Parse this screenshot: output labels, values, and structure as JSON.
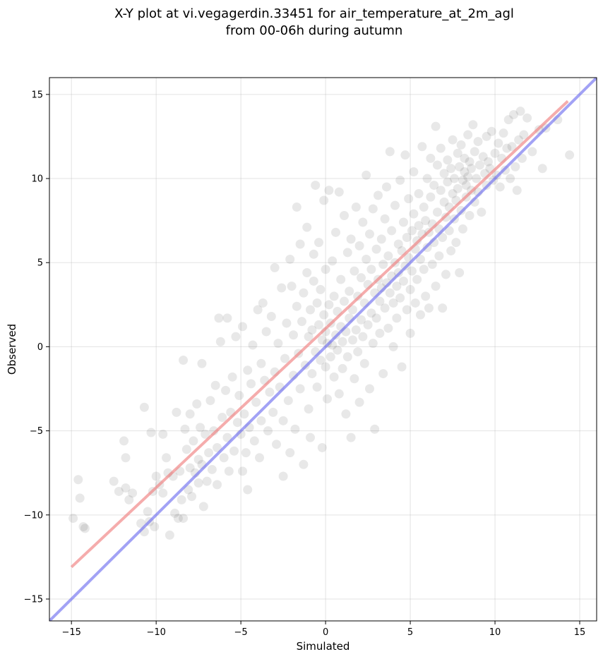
{
  "chart_data": {
    "type": "scatter",
    "title_line1": "X-Y plot at vi.vegagerdin.33451 for air_temperature_at_2m_agl",
    "title_line2": "from 00-06h during autumn",
    "xlabel": "Simulated",
    "ylabel": "Observed",
    "xlim": [
      -16.3,
      16.0
    ],
    "ylim": [
      -16.3,
      16.0
    ],
    "xticks": [
      -15,
      -10,
      -5,
      0,
      5,
      10,
      15
    ],
    "yticks": [
      -15,
      -10,
      -5,
      0,
      5,
      10,
      15
    ],
    "xtick_labels": [
      "−15",
      "−10",
      "−5",
      "0",
      "5",
      "10",
      "15"
    ],
    "ytick_labels": [
      "−15",
      "−10",
      "−5",
      "0",
      "5",
      "10",
      "15"
    ],
    "grid": true,
    "point_color": "#000000",
    "point_opacity": 0.09,
    "lines": [
      {
        "color": "#f08080",
        "x": [
          -15.0,
          14.3
        ],
        "y": [
          -13.1,
          14.6
        ]
      },
      {
        "color": "#7070f0",
        "x": [
          -16.3,
          16.0
        ],
        "y": [
          -16.3,
          16.0
        ]
      }
    ],
    "points": [
      [
        -14.9,
        -10.2
      ],
      [
        -14.6,
        -7.9
      ],
      [
        -14.5,
        -9.0
      ],
      [
        -14.3,
        -10.7
      ],
      [
        -14.2,
        -10.8
      ],
      [
        -12.5,
        -8.0
      ],
      [
        -12.2,
        -8.6
      ],
      [
        -11.9,
        -5.6
      ],
      [
        -11.8,
        -6.6
      ],
      [
        -11.8,
        -8.4
      ],
      [
        -11.6,
        -9.1
      ],
      [
        -11.4,
        -8.7
      ],
      [
        -10.9,
        -10.5
      ],
      [
        -10.7,
        -3.6
      ],
      [
        -10.7,
        -11.0
      ],
      [
        -10.5,
        -9.8
      ],
      [
        -10.4,
        -10.4
      ],
      [
        -10.3,
        -5.1
      ],
      [
        -10.2,
        -8.6
      ],
      [
        -10.1,
        -10.7
      ],
      [
        -10.0,
        -7.7
      ],
      [
        -9.8,
        -8.2
      ],
      [
        -9.6,
        -5.2
      ],
      [
        -9.6,
        -8.7
      ],
      [
        -9.4,
        -6.6
      ],
      [
        -9.3,
        -7.5
      ],
      [
        -9.2,
        -11.2
      ],
      [
        -9.0,
        -7.7
      ],
      [
        -8.9,
        -9.9
      ],
      [
        -8.8,
        -3.9
      ],
      [
        -8.7,
        -10.2
      ],
      [
        -8.6,
        -7.4
      ],
      [
        -8.5,
        -9.1
      ],
      [
        -8.4,
        -10.2
      ],
      [
        -8.4,
        -0.8
      ],
      [
        -8.3,
        -4.9
      ],
      [
        -8.2,
        -6.1
      ],
      [
        -8.1,
        -8.5
      ],
      [
        -8.0,
        -4.0
      ],
      [
        -8.0,
        -7.2
      ],
      [
        -7.9,
        -8.9
      ],
      [
        -7.8,
        -5.6
      ],
      [
        -7.7,
        -7.5
      ],
      [
        -7.6,
        -3.4
      ],
      [
        -7.5,
        -6.7
      ],
      [
        -7.5,
        -8.1
      ],
      [
        -7.4,
        -4.8
      ],
      [
        -7.3,
        -1.0
      ],
      [
        -7.3,
        -7.0
      ],
      [
        -7.2,
        -9.5
      ],
      [
        -7.1,
        -5.2
      ],
      [
        -7.0,
        -8.0
      ],
      [
        -6.9,
        -6.3
      ],
      [
        -6.8,
        -3.2
      ],
      [
        -6.7,
        -7.3
      ],
      [
        -6.6,
        -5.0
      ],
      [
        -6.5,
        -2.3
      ],
      [
        -6.4,
        -6.0
      ],
      [
        -6.4,
        -8.2
      ],
      [
        -6.3,
        1.7
      ],
      [
        -6.2,
        0.3
      ],
      [
        -6.1,
        -4.2
      ],
      [
        -6.0,
        -6.6
      ],
      [
        -5.9,
        -2.6
      ],
      [
        -5.8,
        1.7
      ],
      [
        -5.8,
        -5.4
      ],
      [
        -5.7,
        -7.4
      ],
      [
        -5.6,
        -3.9
      ],
      [
        -5.5,
        -1.8
      ],
      [
        -5.4,
        -6.2
      ],
      [
        -5.3,
        0.6
      ],
      [
        -5.2,
        -4.5
      ],
      [
        -5.1,
        -2.9
      ],
      [
        -5.0,
        -5.2
      ],
      [
        -4.9,
        1.2
      ],
      [
        -4.9,
        -7.4
      ],
      [
        -4.8,
        -4.0
      ],
      [
        -4.7,
        -6.3
      ],
      [
        -4.6,
        -1.4
      ],
      [
        -4.6,
        -8.5
      ],
      [
        -4.5,
        -4.8
      ],
      [
        -4.4,
        -2.2
      ],
      [
        -4.3,
        0.1
      ],
      [
        -4.2,
        -5.6
      ],
      [
        -4.1,
        -3.3
      ],
      [
        -4.0,
        2.2
      ],
      [
        -3.9,
        -6.6
      ],
      [
        -3.8,
        -1.0
      ],
      [
        -3.8,
        -4.4
      ],
      [
        -3.7,
        2.6
      ],
      [
        -3.6,
        -2.0
      ],
      [
        -3.5,
        0.9
      ],
      [
        -3.4,
        -5.0
      ],
      [
        -3.3,
        -2.7
      ],
      [
        -3.2,
        1.8
      ],
      [
        -3.1,
        -3.9
      ],
      [
        -3.0,
        -1.5
      ],
      [
        -3.0,
        4.7
      ],
      [
        -2.9,
        -5.8
      ],
      [
        -2.8,
        0.2
      ],
      [
        -2.7,
        -2.4
      ],
      [
        -2.6,
        3.5
      ],
      [
        -2.5,
        -7.7
      ],
      [
        -2.5,
        -4.4
      ],
      [
        -2.4,
        -0.7
      ],
      [
        -2.3,
        1.4
      ],
      [
        -2.2,
        -3.2
      ],
      [
        -2.1,
        5.2
      ],
      [
        -2.1,
        -6.3
      ],
      [
        -2.0,
        3.6
      ],
      [
        -1.9,
        -1.7
      ],
      [
        -1.9,
        0.7
      ],
      [
        -1.8,
        -4.9
      ],
      [
        -1.7,
        8.3
      ],
      [
        -1.7,
        2.4
      ],
      [
        -1.6,
        -0.4
      ],
      [
        -1.5,
        6.1
      ],
      [
        -1.5,
        -2.5
      ],
      [
        -1.4,
        1.5
      ],
      [
        -1.3,
        -7.0
      ],
      [
        -1.3,
        3.2
      ],
      [
        -1.2,
        -1.1
      ],
      [
        -1.1,
        7.1
      ],
      [
        -1.1,
        4.4
      ],
      [
        -1.0,
        -3.7
      ],
      [
        -1.0,
        0.6
      ],
      [
        -0.9,
        2.2
      ],
      [
        -0.9,
        -5.4
      ],
      [
        -0.8,
        1.0
      ],
      [
        -0.8,
        -1.6
      ],
      [
        -0.7,
        3.9
      ],
      [
        -0.7,
        5.5
      ],
      [
        -0.6,
        -0.3
      ],
      [
        -0.6,
        9.6
      ],
      [
        -0.5,
        2.6
      ],
      [
        -0.5,
        -2.4
      ],
      [
        -0.4,
        1.3
      ],
      [
        -0.4,
        6.2
      ],
      [
        -0.3,
        -0.8
      ],
      [
        -0.3,
        3.4
      ],
      [
        -0.2,
        0.4
      ],
      [
        -0.2,
        -6.0
      ],
      [
        -0.1,
        8.7
      ],
      [
        -0.1,
        1.9
      ],
      [
        0.0,
        -1.2
      ],
      [
        0.0,
        0.9
      ],
      [
        0.0,
        4.6
      ],
      [
        0.1,
        0.2
      ],
      [
        0.1,
        -3.1
      ],
      [
        0.2,
        2.5
      ],
      [
        0.2,
        9.3
      ],
      [
        0.3,
        -0.6
      ],
      [
        0.3,
        1.4
      ],
      [
        0.4,
        5.1
      ],
      [
        0.4,
        0.1
      ],
      [
        0.5,
        -1.8
      ],
      [
        0.5,
        3.0
      ],
      [
        0.6,
        6.8
      ],
      [
        0.6,
        0.7
      ],
      [
        0.7,
        -0.2
      ],
      [
        0.7,
        2.1
      ],
      [
        0.8,
        9.2
      ],
      [
        0.8,
        -2.8
      ],
      [
        0.9,
        1.2
      ],
      [
        0.9,
        4.0
      ],
      [
        1.0,
        0.3
      ],
      [
        1.0,
        -1.3
      ],
      [
        1.1,
        7.8
      ],
      [
        1.1,
        2.7
      ],
      [
        1.2,
        -4.0
      ],
      [
        1.2,
        0.9
      ],
      [
        1.3,
        5.6
      ],
      [
        1.3,
        -0.6
      ],
      [
        1.4,
        3.3
      ],
      [
        1.4,
        1.7
      ],
      [
        1.5,
        -5.4
      ],
      [
        1.5,
        6.4
      ],
      [
        1.6,
        0.4
      ],
      [
        1.6,
        2.2
      ],
      [
        1.7,
        -1.9
      ],
      [
        1.7,
        4.5
      ],
      [
        1.8,
        8.3
      ],
      [
        1.8,
        1.0
      ],
      [
        1.9,
        -0.3
      ],
      [
        1.9,
        3.0
      ],
      [
        2.0,
        6.0
      ],
      [
        2.0,
        -3.3
      ],
      [
        2.1,
        1.6
      ],
      [
        2.1,
        4.1
      ],
      [
        2.2,
        0.6
      ],
      [
        2.2,
        7.4
      ],
      [
        2.3,
        2.6
      ],
      [
        2.3,
        -1.0
      ],
      [
        2.4,
        5.2
      ],
      [
        2.4,
        10.2
      ],
      [
        2.5,
        1.3
      ],
      [
        2.5,
        3.7
      ],
      [
        2.6,
        -2.5
      ],
      [
        2.6,
        6.7
      ],
      [
        2.7,
        2.0
      ],
      [
        2.7,
        4.6
      ],
      [
        2.8,
        0.2
      ],
      [
        2.8,
        8.2
      ],
      [
        2.9,
        3.2
      ],
      [
        2.9,
        -4.9
      ],
      [
        3.0,
        5.8
      ],
      [
        3.0,
        1.7
      ],
      [
        3.1,
        4.0
      ],
      [
        3.1,
        9.0
      ],
      [
        3.2,
        2.7
      ],
      [
        3.2,
        0.8
      ],
      [
        3.3,
        6.4
      ],
      [
        3.3,
        3.5
      ],
      [
        3.4,
        -1.6
      ],
      [
        3.4,
        4.9
      ],
      [
        3.5,
        7.6
      ],
      [
        3.5,
        2.3
      ],
      [
        3.6,
        3.8
      ],
      [
        3.6,
        9.5
      ],
      [
        3.7,
        1.1
      ],
      [
        3.7,
        5.4
      ],
      [
        3.8,
        3.2
      ],
      [
        3.8,
        11.6
      ],
      [
        3.9,
        4.2
      ],
      [
        3.9,
        6.9
      ],
      [
        4.0,
        2.6
      ],
      [
        4.0,
        0.0
      ],
      [
        4.1,
        5.0
      ],
      [
        4.1,
        8.4
      ],
      [
        4.2,
        3.6
      ],
      [
        4.2,
        1.7
      ],
      [
        4.3,
        6.1
      ],
      [
        4.3,
        4.4
      ],
      [
        4.4,
        9.9
      ],
      [
        4.4,
        2.9
      ],
      [
        4.5,
        5.7
      ],
      [
        4.5,
        -1.2
      ],
      [
        4.6,
        7.4
      ],
      [
        4.6,
        3.9
      ],
      [
        4.7,
        4.8
      ],
      [
        4.7,
        11.4
      ],
      [
        4.8,
        2.2
      ],
      [
        4.8,
        6.5
      ],
      [
        4.9,
        5.3
      ],
      [
        4.9,
        8.8
      ],
      [
        5.0,
        3.4
      ],
      [
        5.0,
        0.8
      ],
      [
        5.1,
        6.9
      ],
      [
        5.1,
        4.5
      ],
      [
        5.2,
        10.4
      ],
      [
        5.2,
        7.9
      ],
      [
        5.3,
        2.6
      ],
      [
        5.3,
        5.8
      ],
      [
        5.4,
        6.3
      ],
      [
        5.4,
        4.0
      ],
      [
        5.5,
        9.1
      ],
      [
        5.5,
        7.2
      ],
      [
        5.6,
        1.9
      ],
      [
        5.6,
        5.2
      ],
      [
        5.7,
        11.9
      ],
      [
        5.7,
        6.7
      ],
      [
        5.8,
        8.3
      ],
      [
        5.8,
        4.6
      ],
      [
        5.9,
        3.0
      ],
      [
        5.9,
        7.5
      ],
      [
        6.0,
        10.0
      ],
      [
        6.0,
        5.9
      ],
      [
        6.1,
        6.8
      ],
      [
        6.1,
        2.3
      ],
      [
        6.2,
        8.9
      ],
      [
        6.2,
        11.2
      ],
      [
        6.3,
        7.3
      ],
      [
        6.3,
        4.9
      ],
      [
        6.4,
        9.6
      ],
      [
        6.4,
        6.2
      ],
      [
        6.5,
        13.1
      ],
      [
        6.5,
        3.6
      ],
      [
        6.6,
        8.0
      ],
      [
        6.6,
        10.8
      ],
      [
        6.7,
        7.0
      ],
      [
        6.7,
        5.4
      ],
      [
        6.8,
        9.3
      ],
      [
        6.8,
        11.8
      ],
      [
        6.9,
        6.5
      ],
      [
        6.9,
        2.3
      ],
      [
        7.0,
        8.6
      ],
      [
        7.0,
        10.3
      ],
      [
        7.1,
        7.7
      ],
      [
        7.1,
        4.3
      ],
      [
        7.2,
        9.8
      ],
      [
        7.2,
        11.1
      ],
      [
        7.3,
        6.9
      ],
      [
        7.3,
        8.3
      ],
      [
        7.4,
        10.6
      ],
      [
        7.4,
        5.7
      ],
      [
        7.5,
        9.1
      ],
      [
        7.5,
        12.3
      ],
      [
        7.6,
        7.6
      ],
      [
        7.6,
        10.0
      ],
      [
        7.7,
        8.7
      ],
      [
        7.7,
        6.2
      ],
      [
        7.8,
        11.5
      ],
      [
        7.8,
        9.4
      ],
      [
        7.9,
        4.4
      ],
      [
        7.9,
        10.7
      ],
      [
        8.0,
        8.1
      ],
      [
        8.0,
        12.0
      ],
      [
        8.1,
        9.9
      ],
      [
        8.1,
        7.0
      ],
      [
        8.2,
        10.4
      ],
      [
        8.2,
        11.2
      ],
      [
        8.3,
        8.9
      ],
      [
        8.3,
        9.6
      ],
      [
        8.4,
        12.6
      ],
      [
        8.4,
        10.1
      ],
      [
        8.5,
        7.8
      ],
      [
        8.5,
        11.0
      ],
      [
        8.6,
        9.3
      ],
      [
        8.6,
        10.6
      ],
      [
        8.7,
        13.2
      ],
      [
        8.8,
        8.6
      ],
      [
        8.8,
        11.6
      ],
      [
        8.9,
        10.0
      ],
      [
        9.0,
        9.2
      ],
      [
        9.0,
        12.2
      ],
      [
        9.1,
        10.8
      ],
      [
        9.2,
        8.0
      ],
      [
        9.3,
        11.3
      ],
      [
        9.4,
        10.3
      ],
      [
        9.5,
        12.5
      ],
      [
        9.5,
        9.6
      ],
      [
        9.6,
        11.0
      ],
      [
        9.7,
        10.6
      ],
      [
        9.8,
        12.8
      ],
      [
        9.9,
        9.9
      ],
      [
        10.0,
        11.5
      ],
      [
        10.1,
        10.2
      ],
      [
        10.2,
        12.1
      ],
      [
        10.3,
        9.5
      ],
      [
        10.4,
        11.2
      ],
      [
        10.5,
        12.7
      ],
      [
        10.6,
        10.5
      ],
      [
        10.7,
        11.8
      ],
      [
        10.8,
        13.5
      ],
      [
        10.9,
        10.0
      ],
      [
        11.0,
        11.9
      ],
      [
        11.1,
        13.8
      ],
      [
        11.2,
        10.7
      ],
      [
        11.3,
        9.3
      ],
      [
        11.4,
        12.3
      ],
      [
        11.5,
        14.0
      ],
      [
        11.6,
        11.2
      ],
      [
        11.7,
        12.6
      ],
      [
        11.9,
        13.6
      ],
      [
        12.2,
        11.6
      ],
      [
        12.6,
        12.9
      ],
      [
        12.8,
        10.6
      ],
      [
        13.0,
        13.0
      ],
      [
        13.7,
        13.5
      ],
      [
        14.4,
        11.4
      ]
    ]
  }
}
